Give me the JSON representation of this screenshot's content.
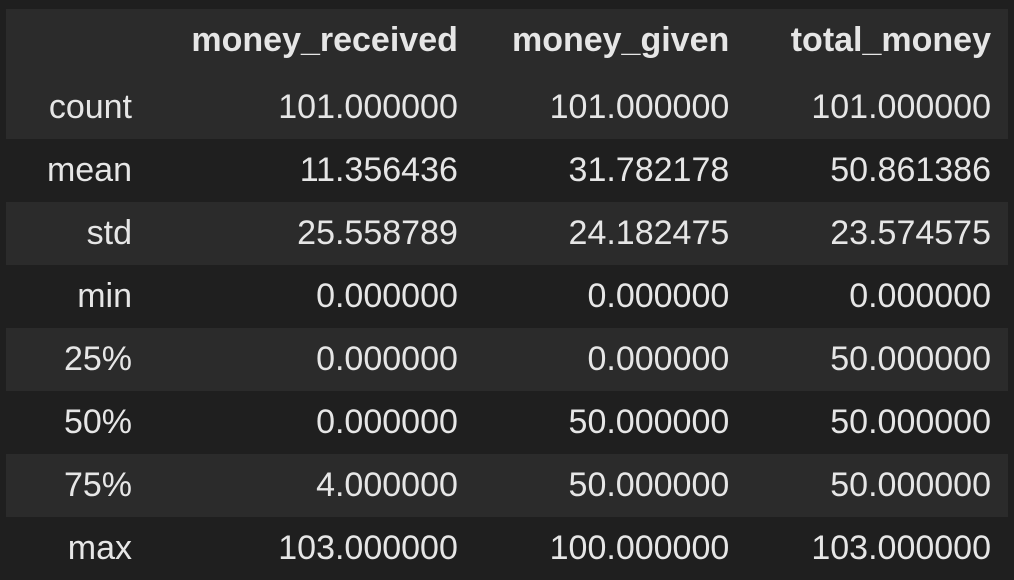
{
  "table": {
    "corner": "",
    "columns": [
      "money_received",
      "money_given",
      "total_money"
    ],
    "rows": [
      {
        "label": "count",
        "values": [
          "101.000000",
          "101.000000",
          "101.000000"
        ]
      },
      {
        "label": "mean",
        "values": [
          "11.356436",
          "31.782178",
          "50.861386"
        ]
      },
      {
        "label": "std",
        "values": [
          "25.558789",
          "24.182475",
          "23.574575"
        ]
      },
      {
        "label": "min",
        "values": [
          "0.000000",
          "0.000000",
          "0.000000"
        ]
      },
      {
        "label": "25%",
        "values": [
          "0.000000",
          "0.000000",
          "50.000000"
        ]
      },
      {
        "label": "50%",
        "values": [
          "0.000000",
          "50.000000",
          "50.000000"
        ]
      },
      {
        "label": "75%",
        "values": [
          "4.000000",
          "50.000000",
          "50.000000"
        ]
      },
      {
        "label": "max",
        "values": [
          "103.000000",
          "100.000000",
          "103.000000"
        ]
      }
    ]
  },
  "colors": {
    "background": "#1f1f1f",
    "stripe": "#2b2b2b",
    "text": "#e6e6e6"
  }
}
